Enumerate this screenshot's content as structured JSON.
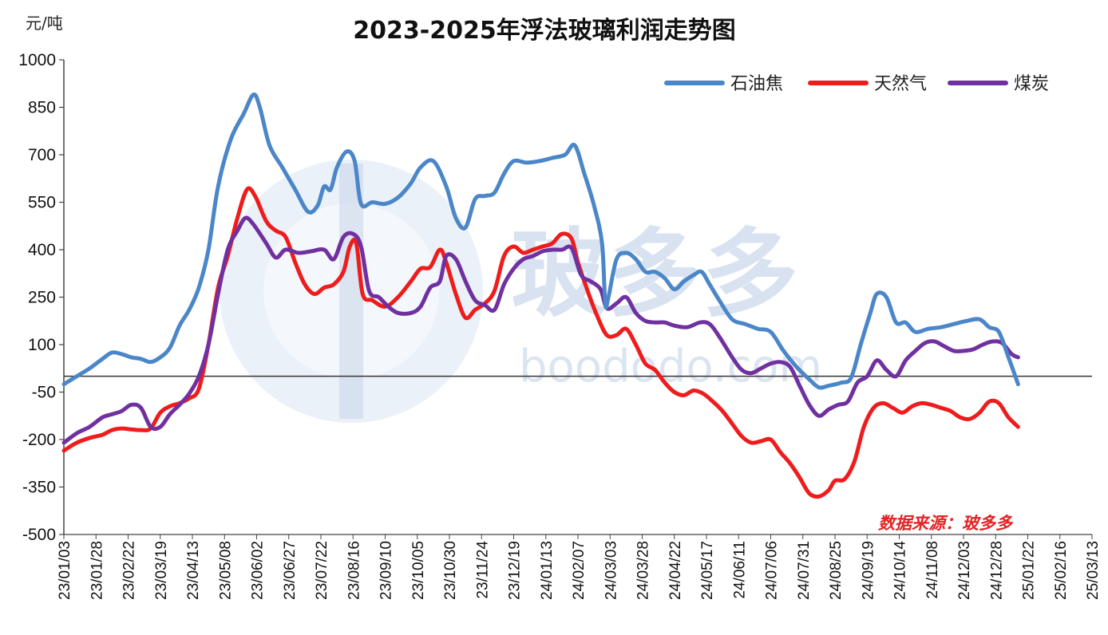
{
  "title": "2023-2025年浮法玻璃利润走势图",
  "unit_label": "元/吨",
  "source_note": "数据来源：玻多多",
  "watermark": {
    "brand": "玻多多",
    "url": "boododo.com"
  },
  "colors": {
    "石油焦": "#4a86c8",
    "天然气": "#ee1c1c",
    "煤炭": "#7030a0"
  },
  "chart_data": {
    "type": "line",
    "title": "2023-2025年浮法玻璃利润走势图",
    "ylabel": "元/吨",
    "ylim": [
      -500,
      1000
    ],
    "yticks": [
      -500,
      -350,
      -200,
      -50,
      100,
      250,
      400,
      550,
      700,
      850,
      1000
    ],
    "grid": false,
    "legend_position": "top-right",
    "x_ticks": [
      "23/01/03",
      "23/01/28",
      "23/02/22",
      "23/03/19",
      "23/04/13",
      "23/05/08",
      "23/06/02",
      "23/06/27",
      "23/07/22",
      "23/08/16",
      "23/09/10",
      "23/10/05",
      "23/10/30",
      "23/11/24",
      "23/12/19",
      "24/01/13",
      "24/02/07",
      "24/03/03",
      "24/03/28",
      "24/04/22",
      "24/05/17",
      "24/06/11",
      "24/07/06",
      "24/07/31",
      "24/08/25",
      "24/09/19",
      "24/10/14",
      "24/11/08",
      "24/12/03",
      "24/12/28",
      "25/01/22",
      "25/02/16",
      "25/03/13"
    ],
    "series": [
      {
        "name": "石油焦",
        "values": [
          [
            0,
            -25
          ],
          [
            0.4,
            0
          ],
          [
            0.8,
            25
          ],
          [
            1.2,
            55
          ],
          [
            1.5,
            75
          ],
          [
            1.8,
            70
          ],
          [
            2.1,
            60
          ],
          [
            2.4,
            55
          ],
          [
            2.7,
            45
          ],
          [
            3.0,
            60
          ],
          [
            3.3,
            90
          ],
          [
            3.6,
            160
          ],
          [
            3.9,
            210
          ],
          [
            4.2,
            280
          ],
          [
            4.5,
            400
          ],
          [
            4.8,
            600
          ],
          [
            5.2,
            750
          ],
          [
            5.6,
            830
          ],
          [
            5.9,
            890
          ],
          [
            6.1,
            850
          ],
          [
            6.4,
            730
          ],
          [
            6.8,
            660
          ],
          [
            7.2,
            590
          ],
          [
            7.6,
            520
          ],
          [
            7.9,
            540
          ],
          [
            8.1,
            600
          ],
          [
            8.3,
            590
          ],
          [
            8.5,
            660
          ],
          [
            8.8,
            710
          ],
          [
            9.05,
            680
          ],
          [
            9.25,
            545
          ],
          [
            9.6,
            550
          ],
          [
            10.0,
            545
          ],
          [
            10.4,
            565
          ],
          [
            10.8,
            610
          ],
          [
            11.1,
            660
          ],
          [
            11.5,
            680
          ],
          [
            11.9,
            600
          ],
          [
            12.2,
            500
          ],
          [
            12.5,
            470
          ],
          [
            12.8,
            560
          ],
          [
            13.1,
            570
          ],
          [
            13.4,
            580
          ],
          [
            13.7,
            640
          ],
          [
            14.0,
            680
          ],
          [
            14.4,
            675
          ],
          [
            14.8,
            680
          ],
          [
            15.2,
            690
          ],
          [
            15.6,
            700
          ],
          [
            15.9,
            730
          ],
          [
            16.2,
            640
          ],
          [
            16.5,
            540
          ],
          [
            16.75,
            420
          ],
          [
            16.85,
            230
          ],
          [
            16.95,
            250
          ],
          [
            17.2,
            370
          ],
          [
            17.5,
            390
          ],
          [
            17.8,
            370
          ],
          [
            18.1,
            330
          ],
          [
            18.4,
            330
          ],
          [
            18.7,
            310
          ],
          [
            19.0,
            275
          ],
          [
            19.3,
            300
          ],
          [
            19.6,
            320
          ],
          [
            19.85,
            330
          ],
          [
            20.1,
            290
          ],
          [
            20.4,
            240
          ],
          [
            20.8,
            180
          ],
          [
            21.2,
            165
          ],
          [
            21.6,
            150
          ],
          [
            22.0,
            140
          ],
          [
            22.4,
            80
          ],
          [
            22.8,
            30
          ],
          [
            23.2,
            -10
          ],
          [
            23.5,
            -35
          ],
          [
            23.8,
            -30
          ],
          [
            24.2,
            -20
          ],
          [
            24.5,
            -5
          ],
          [
            24.8,
            100
          ],
          [
            25.1,
            200
          ],
          [
            25.3,
            260
          ],
          [
            25.6,
            250
          ],
          [
            25.9,
            170
          ],
          [
            26.2,
            170
          ],
          [
            26.5,
            140
          ],
          [
            26.9,
            150
          ],
          [
            27.3,
            155
          ],
          [
            27.7,
            165
          ],
          [
            28.1,
            175
          ],
          [
            28.5,
            180
          ],
          [
            28.8,
            155
          ],
          [
            29.1,
            140
          ],
          [
            29.4,
            60
          ],
          [
            29.7,
            -25
          ]
        ]
      },
      {
        "name": "天然气",
        "values": [
          [
            0,
            -235
          ],
          [
            0.4,
            -210
          ],
          [
            0.8,
            -195
          ],
          [
            1.2,
            -185
          ],
          [
            1.5,
            -170
          ],
          [
            1.8,
            -165
          ],
          [
            2.1,
            -168
          ],
          [
            2.4,
            -170
          ],
          [
            2.7,
            -165
          ],
          [
            3.0,
            -115
          ],
          [
            3.3,
            -95
          ],
          [
            3.6,
            -85
          ],
          [
            3.9,
            -70
          ],
          [
            4.2,
            -40
          ],
          [
            4.5,
            100
          ],
          [
            4.8,
            280
          ],
          [
            5.1,
            380
          ],
          [
            5.4,
            500
          ],
          [
            5.7,
            590
          ],
          [
            5.95,
            570
          ],
          [
            6.3,
            490
          ],
          [
            6.6,
            460
          ],
          [
            6.9,
            440
          ],
          [
            7.2,
            360
          ],
          [
            7.5,
            290
          ],
          [
            7.8,
            260
          ],
          [
            8.1,
            280
          ],
          [
            8.4,
            290
          ],
          [
            8.7,
            330
          ],
          [
            8.9,
            410
          ],
          [
            9.1,
            420
          ],
          [
            9.3,
            260
          ],
          [
            9.6,
            240
          ],
          [
            10.0,
            220
          ],
          [
            10.4,
            250
          ],
          [
            10.8,
            300
          ],
          [
            11.1,
            340
          ],
          [
            11.4,
            345
          ],
          [
            11.7,
            400
          ],
          [
            11.9,
            360
          ],
          [
            12.2,
            260
          ],
          [
            12.5,
            185
          ],
          [
            12.8,
            210
          ],
          [
            13.1,
            230
          ],
          [
            13.4,
            270
          ],
          [
            13.7,
            380
          ],
          [
            14.0,
            410
          ],
          [
            14.3,
            390
          ],
          [
            14.6,
            400
          ],
          [
            14.9,
            410
          ],
          [
            15.2,
            420
          ],
          [
            15.5,
            450
          ],
          [
            15.8,
            435
          ],
          [
            16.0,
            360
          ],
          [
            16.3,
            270
          ],
          [
            16.6,
            190
          ],
          [
            16.9,
            130
          ],
          [
            17.2,
            130
          ],
          [
            17.5,
            150
          ],
          [
            17.8,
            100
          ],
          [
            18.1,
            40
          ],
          [
            18.4,
            20
          ],
          [
            18.7,
            -20
          ],
          [
            19.0,
            -50
          ],
          [
            19.3,
            -60
          ],
          [
            19.6,
            -45
          ],
          [
            19.9,
            -55
          ],
          [
            20.2,
            -80
          ],
          [
            20.5,
            -110
          ],
          [
            20.8,
            -150
          ],
          [
            21.1,
            -190
          ],
          [
            21.4,
            -210
          ],
          [
            21.7,
            -205
          ],
          [
            22.0,
            -200
          ],
          [
            22.3,
            -240
          ],
          [
            22.6,
            -275
          ],
          [
            22.9,
            -320
          ],
          [
            23.2,
            -370
          ],
          [
            23.5,
            -380
          ],
          [
            23.8,
            -360
          ],
          [
            24.0,
            -330
          ],
          [
            24.3,
            -325
          ],
          [
            24.6,
            -270
          ],
          [
            24.9,
            -160
          ],
          [
            25.2,
            -100
          ],
          [
            25.5,
            -85
          ],
          [
            25.8,
            -100
          ],
          [
            26.1,
            -115
          ],
          [
            26.4,
            -95
          ],
          [
            26.7,
            -85
          ],
          [
            27.0,
            -90
          ],
          [
            27.3,
            -100
          ],
          [
            27.6,
            -110
          ],
          [
            27.9,
            -130
          ],
          [
            28.2,
            -135
          ],
          [
            28.5,
            -115
          ],
          [
            28.8,
            -80
          ],
          [
            29.1,
            -85
          ],
          [
            29.4,
            -130
          ],
          [
            29.7,
            -160
          ]
        ]
      },
      {
        "name": "煤炭",
        "values": [
          [
            0,
            -210
          ],
          [
            0.4,
            -180
          ],
          [
            0.8,
            -160
          ],
          [
            1.2,
            -130
          ],
          [
            1.5,
            -120
          ],
          [
            1.8,
            -110
          ],
          [
            2.1,
            -90
          ],
          [
            2.4,
            -100
          ],
          [
            2.7,
            -160
          ],
          [
            3.0,
            -160
          ],
          [
            3.3,
            -120
          ],
          [
            3.6,
            -90
          ],
          [
            3.9,
            -55
          ],
          [
            4.2,
            0
          ],
          [
            4.5,
            100
          ],
          [
            4.8,
            260
          ],
          [
            5.1,
            400
          ],
          [
            5.4,
            460
          ],
          [
            5.65,
            500
          ],
          [
            5.9,
            480
          ],
          [
            6.3,
            420
          ],
          [
            6.6,
            375
          ],
          [
            6.9,
            400
          ],
          [
            7.3,
            390
          ],
          [
            7.7,
            395
          ],
          [
            8.1,
            400
          ],
          [
            8.4,
            370
          ],
          [
            8.7,
            440
          ],
          [
            9.0,
            450
          ],
          [
            9.25,
            410
          ],
          [
            9.5,
            270
          ],
          [
            9.8,
            250
          ],
          [
            10.1,
            220
          ],
          [
            10.4,
            200
          ],
          [
            10.8,
            200
          ],
          [
            11.1,
            220
          ],
          [
            11.4,
            280
          ],
          [
            11.7,
            300
          ],
          [
            11.9,
            380
          ],
          [
            12.2,
            370
          ],
          [
            12.5,
            300
          ],
          [
            12.8,
            240
          ],
          [
            13.1,
            225
          ],
          [
            13.4,
            210
          ],
          [
            13.7,
            290
          ],
          [
            14.0,
            340
          ],
          [
            14.3,
            370
          ],
          [
            14.6,
            380
          ],
          [
            14.9,
            395
          ],
          [
            15.2,
            400
          ],
          [
            15.5,
            400
          ],
          [
            15.8,
            405
          ],
          [
            16.1,
            320
          ],
          [
            16.4,
            300
          ],
          [
            16.7,
            275
          ],
          [
            16.9,
            215
          ],
          [
            17.2,
            230
          ],
          [
            17.5,
            250
          ],
          [
            17.8,
            200
          ],
          [
            18.1,
            175
          ],
          [
            18.4,
            170
          ],
          [
            18.7,
            170
          ],
          [
            19.0,
            160
          ],
          [
            19.4,
            155
          ],
          [
            19.8,
            170
          ],
          [
            20.1,
            165
          ],
          [
            20.4,
            125
          ],
          [
            20.8,
            60
          ],
          [
            21.1,
            20
          ],
          [
            21.4,
            10
          ],
          [
            21.7,
            25
          ],
          [
            22.0,
            40
          ],
          [
            22.3,
            45
          ],
          [
            22.6,
            30
          ],
          [
            22.9,
            -30
          ],
          [
            23.2,
            -90
          ],
          [
            23.5,
            -125
          ],
          [
            23.8,
            -105
          ],
          [
            24.1,
            -90
          ],
          [
            24.4,
            -80
          ],
          [
            24.7,
            -20
          ],
          [
            25.0,
            0
          ],
          [
            25.3,
            50
          ],
          [
            25.6,
            20
          ],
          [
            25.9,
            0
          ],
          [
            26.2,
            50
          ],
          [
            26.5,
            80
          ],
          [
            26.8,
            105
          ],
          [
            27.1,
            110
          ],
          [
            27.4,
            95
          ],
          [
            27.7,
            80
          ],
          [
            28.0,
            80
          ],
          [
            28.3,
            85
          ],
          [
            28.6,
            100
          ],
          [
            28.9,
            110
          ],
          [
            29.2,
            105
          ],
          [
            29.5,
            70
          ],
          [
            29.7,
            60
          ]
        ]
      }
    ]
  }
}
